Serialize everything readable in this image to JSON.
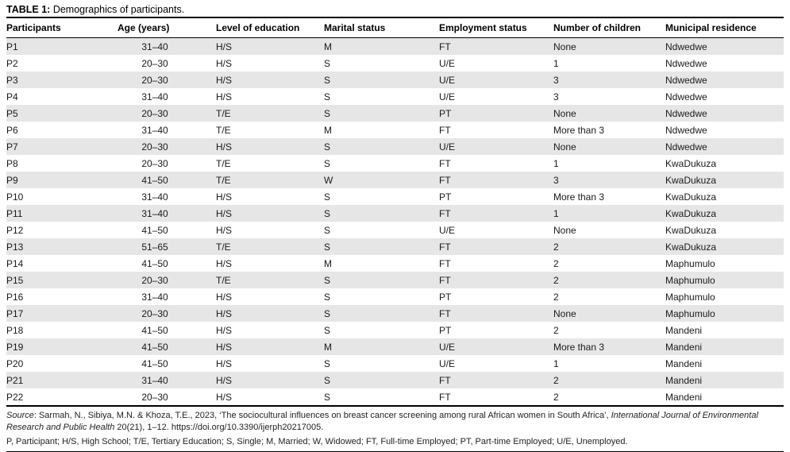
{
  "title": {
    "label": "TABLE 1:",
    "text": "Demographics of participants."
  },
  "table": {
    "columns": [
      "Participants",
      "Age (years)",
      "Level of education",
      "Marital status",
      "Employment status",
      "Number of children",
      "Municipal residence"
    ],
    "rows": [
      [
        "P1",
        "31–40",
        "H/S",
        "M",
        "FT",
        "None",
        "Ndwedwe"
      ],
      [
        "P2",
        "20–30",
        "H/S",
        "S",
        "U/E",
        "1",
        "Ndwedwe"
      ],
      [
        "P3",
        "20–30",
        "H/S",
        "S",
        "U/E",
        "3",
        "Ndwedwe"
      ],
      [
        "P4",
        "31–40",
        "H/S",
        "S",
        "U/E",
        "3",
        "Ndwedwe"
      ],
      [
        "P5",
        "20–30",
        "T/E",
        "S",
        "PT",
        "None",
        "Ndwedwe"
      ],
      [
        "P6",
        "31–40",
        "T/E",
        "M",
        "FT",
        "More than 3",
        "Ndwedwe"
      ],
      [
        "P7",
        "20–30",
        "H/S",
        "S",
        "U/E",
        "None",
        "Ndwedwe"
      ],
      [
        "P8",
        "20–30",
        "T/E",
        "S",
        "FT",
        "1",
        "KwaDukuza"
      ],
      [
        "P9",
        "41–50",
        "T/E",
        "W",
        "FT",
        "3",
        "KwaDukuza"
      ],
      [
        "P10",
        "31–40",
        "H/S",
        "S",
        "PT",
        "More than 3",
        "KwaDukuza"
      ],
      [
        "P11",
        "31–40",
        "H/S",
        "S",
        "FT",
        "1",
        "KwaDukuza"
      ],
      [
        "P12",
        "41–50",
        "H/S",
        "S",
        "U/E",
        "None",
        "KwaDukuza"
      ],
      [
        "P13",
        "51–65",
        "T/E",
        "S",
        "FT",
        "2",
        "KwaDukuza"
      ],
      [
        "P14",
        "41–50",
        "H/S",
        "M",
        "FT",
        "2",
        "Maphumulo"
      ],
      [
        "P15",
        "20–30",
        "T/E",
        "S",
        "FT",
        "2",
        "Maphumulo"
      ],
      [
        "P16",
        "31–40",
        "H/S",
        "S",
        "PT",
        "2",
        "Maphumulo"
      ],
      [
        "P17",
        "20–30",
        "H/S",
        "S",
        "FT",
        "None",
        "Maphumulo"
      ],
      [
        "P18",
        "41–50",
        "H/S",
        "S",
        "PT",
        "2",
        "Mandeni"
      ],
      [
        "P19",
        "41–50",
        "H/S",
        "M",
        "U/E",
        "More than 3",
        "Mandeni"
      ],
      [
        "P20",
        "41–50",
        "H/S",
        "S",
        "U/E",
        "1",
        "Mandeni"
      ],
      [
        "P21",
        "31–40",
        "H/S",
        "S",
        "FT",
        "2",
        "Mandeni"
      ],
      [
        "P22",
        "20–30",
        "H/S",
        "S",
        "FT",
        "2",
        "Mandeni"
      ]
    ]
  },
  "footnotes": {
    "source_label": "Source",
    "source_text_1": ": Sarmah, N., Sibiya, M.N. & Khoza, T.E., 2023, ‘The sociocultural influences on breast cancer screening among rural African women in South Africa’, ",
    "source_journal": "International Journal of Environmental Research and Public Health",
    "source_text_2": " 20(21), 1–12. https://doi.org/10.3390/ijerph20217005.",
    "abbreviations": "P, Participant; H/S, High School; T/E, Tertiary Education; S, Single; M, Married; W, Widowed; FT, Full-time Employed; PT, Part-time Employed; U/E, Unemployed."
  },
  "colors": {
    "stripe": "#e6e6e6",
    "rule": "#000000",
    "text": "#1a1a1a"
  }
}
